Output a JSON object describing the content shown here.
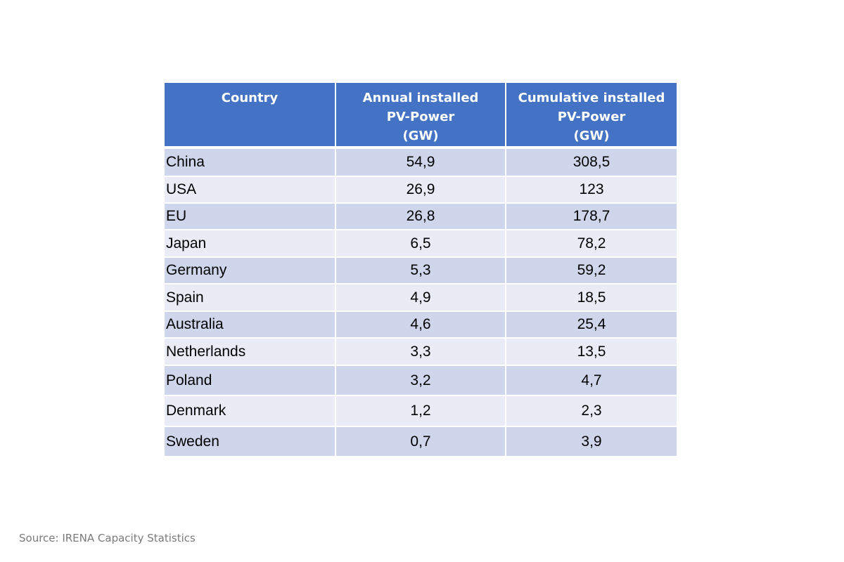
{
  "table": {
    "headers": [
      [
        "Country"
      ],
      [
        "Annual installed",
        "PV-Power",
        "(GW)"
      ],
      [
        "Cumulative installed",
        "PV-Power",
        "(GW)"
      ]
    ],
    "rows": [
      [
        "China",
        "54,9",
        "308,5"
      ],
      [
        "USA",
        "26,9",
        "123"
      ],
      [
        "EU",
        "26,8",
        "178,7"
      ],
      [
        "Japan",
        "6,5",
        "78,2"
      ],
      [
        "Germany",
        "5,3",
        "59,2"
      ],
      [
        "Spain",
        "4,9",
        "18,5"
      ],
      [
        "Australia",
        "4,6",
        "25,4"
      ],
      [
        "Netherlands",
        "3,3",
        "13,5"
      ],
      [
        "Poland",
        "3,2",
        "4,7"
      ],
      [
        "Denmark",
        "1,2",
        "2,3"
      ],
      [
        "Sweden",
        "0,7",
        "3,9"
      ]
    ]
  },
  "source": "Source: IRENA Capacity Statistics",
  "colors": {
    "header_bg": "#4472c4",
    "row_dark": "#cfd5ea",
    "row_light": "#e9ebf5",
    "source_text": "#7a7a7a"
  }
}
